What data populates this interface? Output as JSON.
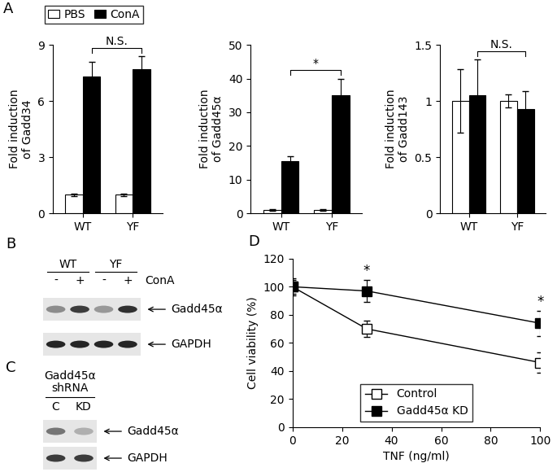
{
  "chart_data": [
    {
      "type": "bar",
      "panel": "A",
      "legend": "upper left",
      "categories": [
        "WT",
        "YF"
      ],
      "ylabel": "Fold induction\nof Gadd34",
      "ylim": [
        0,
        9
      ],
      "yticks": [
        0,
        3,
        6,
        9
      ],
      "series": [
        {
          "name": "PBS",
          "color": "#ffffff",
          "values": [
            1,
            1
          ],
          "errors": [
            0.06,
            0.06
          ]
        },
        {
          "name": "ConA",
          "color": "#000000",
          "values": [
            7.3,
            7.7
          ],
          "errors": [
            0.8,
            0.7
          ]
        }
      ],
      "significance": {
        "text": "N.S.",
        "between": [
          "WT",
          "YF"
        ],
        "series": "ConA"
      }
    },
    {
      "type": "bar",
      "categories": [
        "WT",
        "YF"
      ],
      "ylabel": "Fold induction\nof Gadd45α",
      "ylim": [
        0,
        50
      ],
      "yticks": [
        0,
        10,
        20,
        30,
        40,
        50
      ],
      "series": [
        {
          "name": "PBS",
          "color": "#ffffff",
          "values": [
            1,
            1
          ],
          "errors": [
            0.2,
            0.2
          ]
        },
        {
          "name": "ConA",
          "color": "#000000",
          "values": [
            15.5,
            35
          ],
          "errors": [
            1.5,
            5
          ]
        }
      ],
      "significance": {
        "text": "*",
        "between": [
          "WT",
          "YF"
        ],
        "series": "ConA"
      }
    },
    {
      "type": "bar",
      "categories": [
        "WT",
        "YF"
      ],
      "ylabel": "Fold induction\nof Gadd143",
      "ylim": [
        0,
        1.5
      ],
      "yticks": [
        0,
        0.5,
        1,
        1.5
      ],
      "series": [
        {
          "name": "PBS",
          "color": "#ffffff",
          "values": [
            1.0,
            1.0
          ],
          "errors": [
            0.28,
            0.06
          ]
        },
        {
          "name": "ConA",
          "color": "#000000",
          "values": [
            1.05,
            0.93
          ],
          "errors": [
            0.32,
            0.16
          ]
        }
      ],
      "significance": {
        "text": "N.S.",
        "between": [
          "WT",
          "YF"
        ],
        "series": "ConA"
      }
    },
    {
      "type": "blot",
      "panel": "B",
      "groups": [
        "WT",
        "WT",
        "YF",
        "YF"
      ],
      "lane_labels": [
        "-",
        "+",
        "-",
        "+"
      ],
      "row_label": "ConA",
      "bands": [
        {
          "name": "Gadd45α",
          "intensity": [
            0.5,
            0.85,
            0.45,
            0.9
          ]
        },
        {
          "name": "GAPDH",
          "intensity": [
            0.95,
            0.95,
            0.95,
            0.95
          ]
        }
      ]
    },
    {
      "type": "blot",
      "panel": "C",
      "header": "Gadd45α\nshRNA",
      "lane_labels": [
        "C",
        "KD"
      ],
      "bands": [
        {
          "name": "Gadd45α",
          "intensity": [
            0.6,
            0.35
          ]
        },
        {
          "name": "GAPDH",
          "intensity": [
            0.85,
            0.85
          ]
        }
      ]
    },
    {
      "type": "line",
      "panel": "D",
      "x": [
        0,
        30,
        100
      ],
      "xlabel": "TNF (ng/ml)",
      "ylabel": "Cell viability (%)",
      "xlim": [
        0,
        100
      ],
      "xticks": [
        0,
        20,
        40,
        60,
        80,
        100
      ],
      "ylim": [
        0,
        120
      ],
      "yticks": [
        0,
        20,
        40,
        60,
        80,
        100,
        120
      ],
      "legend": "lower center",
      "series": [
        {
          "name": "Control",
          "color": "#000000",
          "marker": "square_open",
          "values": [
            100,
            70,
            46
          ],
          "errors": [
            6,
            6,
            7
          ]
        },
        {
          "name": "Gadd45α KD",
          "color": "#000000",
          "marker": "square",
          "values": [
            100,
            97,
            74
          ],
          "errors": [
            5,
            8,
            9
          ]
        }
      ],
      "annotations": [
        {
          "text": "*",
          "x": 30
        },
        {
          "text": "*",
          "x": 100
        }
      ]
    }
  ]
}
